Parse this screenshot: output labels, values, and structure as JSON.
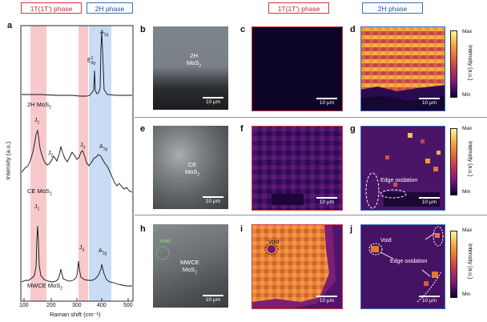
{
  "headers": {
    "left_1t": "1T(1T′) phase",
    "left_2h": "2H phase",
    "right_1t": "1T(1T′) phase",
    "right_2h": "2H phase"
  },
  "panel_a": {
    "letter": "a",
    "ylabel": "Intensity (a.u.)",
    "xlabel": "Raman shift (cm⁻¹)",
    "xticks": [
      "100",
      "200",
      "300",
      "400",
      "500"
    ],
    "spectra": [
      {
        "name": "2H MoS₂",
        "peaks": [
          "E¹₂g",
          "A₁g"
        ]
      },
      {
        "name": "CE MoS₂",
        "peaks": [
          "J₁",
          "J₂",
          "J₃",
          "A₁g"
        ]
      },
      {
        "name": "MWCE MoS₂",
        "peaks": [
          "J₁",
          "J₃",
          "A₁g"
        ]
      }
    ],
    "label_2h": "2H MoS",
    "label_ce": "CE MoS",
    "label_mw": "MWCE MoS",
    "sub2": "2",
    "pk_e2g": "E",
    "pk_e2g_sup": "1",
    "pk_e2g_sub": "2g",
    "pk_a1g": "A",
    "pk_a1g_sub": "1g",
    "pk_j": "J",
    "pk_j1_sub": "1",
    "pk_j2_sub": "2",
    "pk_j3_sub": "3"
  },
  "rows": {
    "row1": {
      "sem": "b",
      "m1": "c",
      "m2": "d",
      "sem_label": "2H",
      "sem_label2": "MoS",
      "sub": "2"
    },
    "row2": {
      "sem": "e",
      "m1": "f",
      "m2": "g",
      "sem_label": "CE",
      "sem_label2": "MoS",
      "sub": "2",
      "annotation": "Edge oxidation"
    },
    "row3": {
      "sem": "h",
      "m1": "i",
      "m2": "j",
      "sem_label": "MWCE",
      "sem_label2": "MoS",
      "sub": "2",
      "void_sem": "Void",
      "void_map": "Void",
      "void_map2": "Void",
      "annotation": "Edge oxidation"
    }
  },
  "scale_bar": "10 μm",
  "colorbar": {
    "max": "Max",
    "min": "Min",
    "title": "Intensity (a.u.)"
  },
  "colors": {
    "red": "#d8333a",
    "blue": "#3b6fbf",
    "red_band": "#f7c9cb",
    "blue_band": "#c9dcf4"
  }
}
